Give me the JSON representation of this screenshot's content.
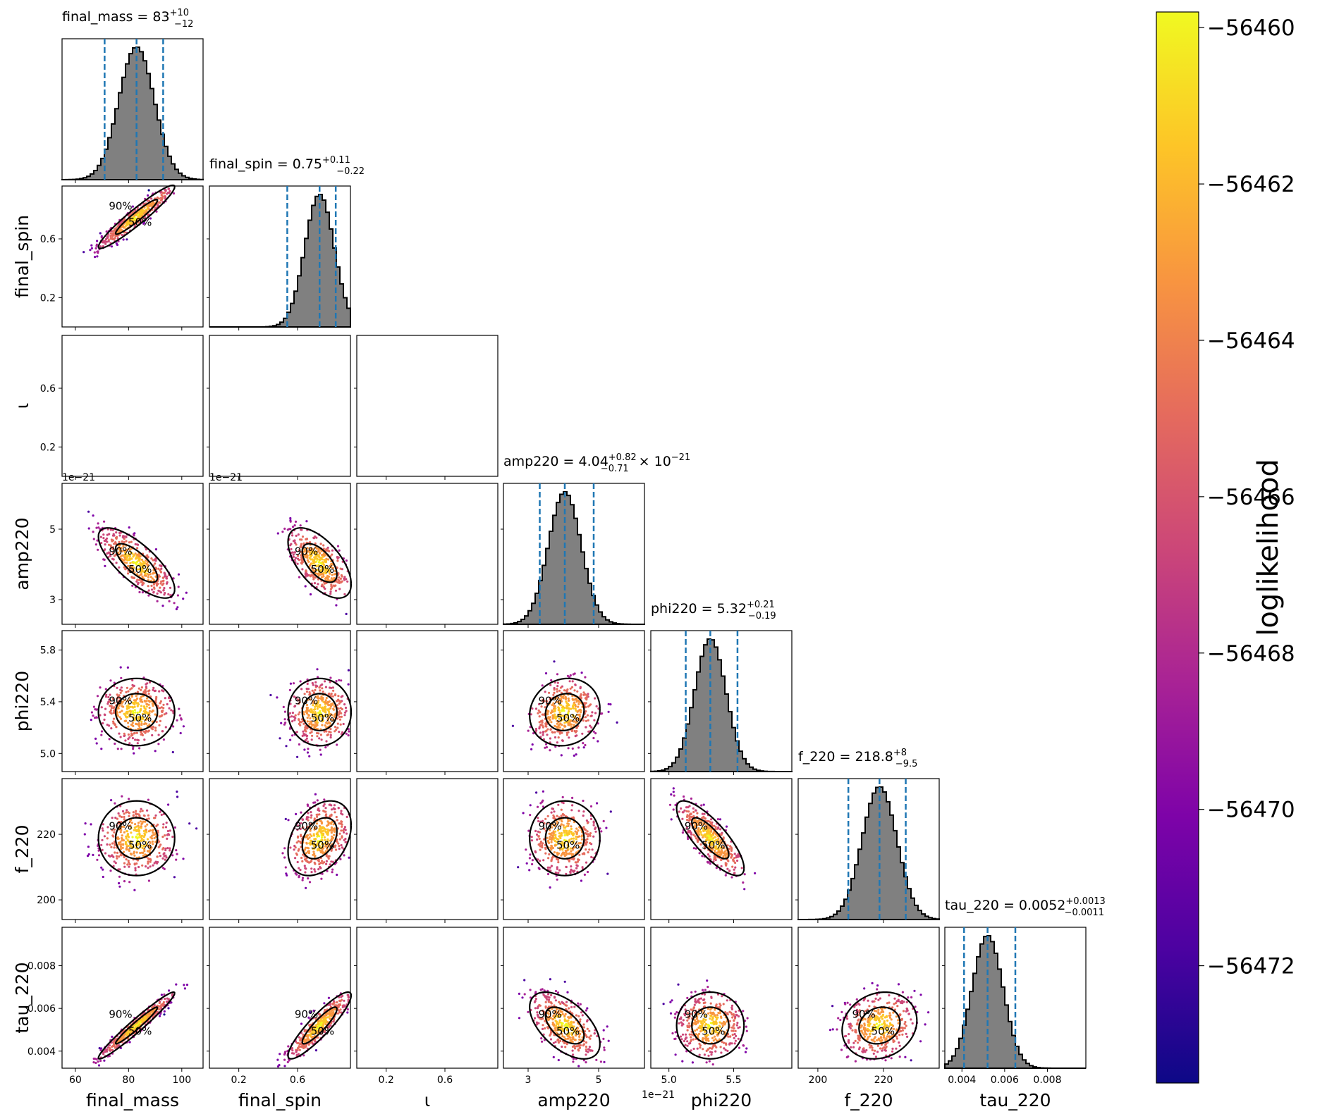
{
  "chart_data": {
    "type": "scatter",
    "layout": "corner",
    "colormap": "plasma",
    "parameters": [
      {
        "name": "final_mass",
        "label": "final_mass",
        "range": [
          55,
          108
        ],
        "ticks": [
          60,
          80,
          100
        ],
        "tick_labels": [
          "60",
          "80",
          "100"
        ],
        "median": 83,
        "lower": 71,
        "upper": 93,
        "title": {
          "prefix": "final_mass = 83",
          "sup": "+10",
          "sub": "−12",
          "suffix": ""
        }
      },
      {
        "name": "final_spin",
        "label": "final_spin",
        "range": [
          0.0,
          0.96
        ],
        "ticks": [
          0.2,
          0.6
        ],
        "tick_labels": [
          "0.2",
          "0.6"
        ],
        "median": 0.75,
        "lower": 0.53,
        "upper": 0.86,
        "title": {
          "prefix": "final_spin = 0.75",
          "sup": "+0.11",
          "sub": "−0.22",
          "suffix": ""
        }
      },
      {
        "name": "iota",
        "label": "ι",
        "range": [
          0.0,
          0.96
        ],
        "ticks": [
          0.2,
          0.6
        ],
        "tick_labels": [
          "0.2",
          "0.6"
        ],
        "empty": true
      },
      {
        "name": "amp220",
        "label": "amp220",
        "range": [
          2.3,
          6.3
        ],
        "ticks": [
          3,
          5
        ],
        "tick_labels": [
          "3",
          "5"
        ],
        "offset_text": "1e−21",
        "median": 4.04,
        "lower": 3.33,
        "upper": 4.86,
        "title": {
          "prefix": "amp220 = 4.04",
          "sup": "+0.82",
          "sub": "−0.71",
          "suffix": "× 10",
          "suffix_sup": "−21"
        }
      },
      {
        "name": "phi220",
        "label": "phi220",
        "range": [
          4.86,
          5.95
        ],
        "ticks": [
          5.0,
          5.5
        ],
        "tick_labels": [
          "5.0",
          "5.5"
        ],
        "ticks_y": [
          5.0,
          5.4,
          5.8
        ],
        "tick_labels_y": [
          "5.0",
          "5.4",
          "5.8"
        ],
        "median": 5.32,
        "lower": 5.13,
        "upper": 5.53,
        "title": {
          "prefix": "phi220 = 5.32",
          "sup": "+0.21",
          "sub": "−0.19",
          "suffix": ""
        }
      },
      {
        "name": "f_220",
        "label": "f_220",
        "range": [
          194,
          237
        ],
        "ticks": [
          200,
          220
        ],
        "tick_labels": [
          "200",
          "220"
        ],
        "ticks_y": [
          200,
          220
        ],
        "tick_labels_y": [
          "200",
          "220"
        ],
        "median": 218.8,
        "lower": 209.3,
        "upper": 226.8,
        "title": {
          "prefix": "f_220 = 218.8",
          "sup": "+8",
          "sub": "−9.5",
          "suffix": ""
        }
      },
      {
        "name": "tau_220",
        "label": "tau_220",
        "range": [
          0.0032,
          0.0098
        ],
        "ticks": [
          0.004,
          0.006,
          0.008
        ],
        "tick_labels": [
          "0.004",
          "0.006",
          "0.008"
        ],
        "median": 0.0052,
        "lower": 0.0041,
        "upper": 0.0065,
        "title": {
          "prefix": "tau_220 = 0.0052",
          "sup": "+0.0013",
          "sub": "−0.0011",
          "suffix": ""
        }
      }
    ],
    "contour_levels": [
      "50%",
      "90%"
    ],
    "colorbar": {
      "label": "loglikelihood",
      "min": -56473.5,
      "max": -56459.8,
      "ticks": [
        -56460,
        -56462,
        -56464,
        -56466,
        -56468,
        -56470,
        -56472
      ],
      "tick_labels": [
        "−56460",
        "−56462",
        "−56464",
        "−56466",
        "−56468",
        "−56470",
        "−56472"
      ]
    },
    "histogram_color": "#808080",
    "interval_line_color": "#1f77b4"
  }
}
